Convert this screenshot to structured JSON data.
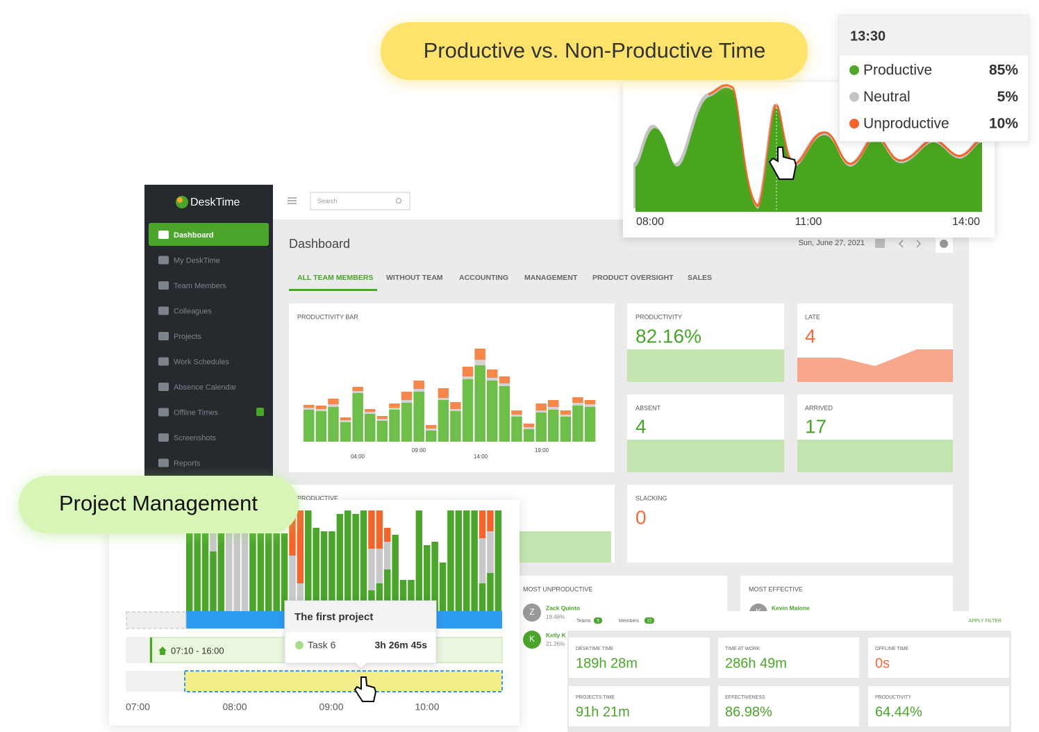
{
  "callouts": {
    "top": "Productive vs. Non-Productive Time",
    "left": "Project Management"
  },
  "tooltip": {
    "time": "13:30",
    "items": [
      {
        "name": "Productive",
        "value": "85%",
        "color": "#4fa82a"
      },
      {
        "name": "Neutral",
        "value": "5%",
        "color": "#c4c4c4"
      },
      {
        "name": "Unproductive",
        "value": "10%",
        "color": "#f5642a"
      }
    ]
  },
  "timeline": {
    "labels": [
      "08:00",
      "11:00",
      "14:00"
    ]
  },
  "sidebar": {
    "brand": "DeskTime",
    "items": [
      "Dashboard",
      "My DeskTime",
      "Team Members",
      "Colleagues",
      "Projects",
      "Work Schedules",
      "Absence Calendar",
      "Offline Times",
      "Screenshots",
      "Reports"
    ]
  },
  "topbar": {
    "search": "Search"
  },
  "dashboard": {
    "title": "Dashboard",
    "date": "Sun, June 27, 2021",
    "tabs": [
      "ALL TEAM MEMBERS",
      "WITHOUT TEAM",
      "ACCOUNTING",
      "MANAGEMENT",
      "PRODUCT OVERSIGHT",
      "SALES"
    ]
  },
  "productivity_bar": {
    "type": "bar",
    "title": "PRODUCTIVITY BAR",
    "x_labels": [
      "04:00",
      "09:00",
      "14:00",
      "19:00"
    ],
    "series": [
      {
        "color": "#6dbf4a",
        "values": [
          46,
          44,
          50,
          28,
          70,
          40,
          30,
          46,
          56,
          72,
          16,
          60,
          44,
          90,
          110,
          88,
          80,
          36,
          18,
          42,
          46,
          36,
          52,
          50
        ]
      },
      {
        "color": "#d2d2d2",
        "values": [
          3,
          3,
          4,
          3,
          3,
          3,
          3,
          3,
          4,
          4,
          3,
          3,
          3,
          4,
          8,
          4,
          4,
          3,
          3,
          3,
          4,
          3,
          4,
          4
        ]
      },
      {
        "color": "#f5874a",
        "values": [
          4,
          5,
          8,
          4,
          6,
          4,
          4,
          6,
          12,
          12,
          5,
          14,
          10,
          14,
          16,
          12,
          10,
          6,
          5,
          10,
          10,
          6,
          8,
          6
        ]
      }
    ]
  },
  "stats": [
    {
      "label": "PRODUCTIVITY",
      "value": "82.16%"
    },
    {
      "label": "LATE",
      "value": "4"
    },
    {
      "label": "ABSENT",
      "value": "4"
    },
    {
      "label": "ARRIVED",
      "value": "17"
    },
    {
      "label": "SLACKING",
      "value": "0"
    }
  ],
  "productive_card": "PRODUCTIVE",
  "most_unproductive": {
    "title": "MOST UNPRODUCTIVE",
    "people": [
      {
        "initial": "Z",
        "name": "Zack Quinto",
        "value": "19.46%"
      },
      {
        "initial": "K",
        "name": "Kelly K",
        "value": "21.26%"
      }
    ]
  },
  "most_effective": {
    "title": "MOST EFFECTIVE",
    "people": [
      {
        "initial": "K",
        "name": "Kevin Malone"
      }
    ]
  },
  "filters": {
    "teams": "Teams",
    "teams_count": "5",
    "members": "Members",
    "members_count": "22",
    "apply": "APPLY FILTER"
  },
  "summary": [
    {
      "label": "DESKTIME TIME",
      "value": "189h 28m"
    },
    {
      "label": "TIME AT WORK",
      "value": "286h 49m"
    },
    {
      "label": "OFFLINE TIME",
      "value": "0s"
    },
    {
      "label": "PROJECTS TIME",
      "value": "91h 21m"
    },
    {
      "label": "EFFECTIVENESS",
      "value": "86.98%"
    },
    {
      "label": "PRODUCTIVITY",
      "value": "64.44%"
    }
  ],
  "project": {
    "type": "bar",
    "x_labels": [
      "07:00",
      "08:00",
      "09:00",
      "10:00"
    ],
    "schedule": "07:10 - 16:00",
    "tooltip": {
      "title": "The first project",
      "task": "Task 6",
      "duration": "3h 26m 45s"
    },
    "series": [
      {
        "color": "#4aa52a",
        "values": [
          112,
          112,
          112,
          86,
          112,
          0,
          0,
          0,
          112,
          112,
          112,
          112,
          112,
          0,
          0,
          145,
          120,
          115,
          115,
          140,
          145,
          140,
          145,
          30,
          40,
          60,
          110,
          45,
          45,
          145,
          95,
          100,
          70,
          145,
          145,
          145,
          145,
          40,
          55,
          145
        ]
      },
      {
        "color": "#c8c8c8",
        "values": [
          0,
          0,
          0,
          26,
          0,
          112,
          112,
          112,
          0,
          0,
          0,
          0,
          0,
          80,
          40,
          0,
          0,
          0,
          0,
          0,
          0,
          0,
          0,
          60,
          50,
          40,
          0,
          0,
          0,
          0,
          0,
          0,
          0,
          0,
          0,
          0,
          0,
          65,
          60,
          0
        ]
      },
      {
        "color": "#f5642a",
        "values": [
          0,
          0,
          0,
          0,
          0,
          0,
          0,
          0,
          0,
          0,
          0,
          0,
          0,
          65,
          105,
          0,
          0,
          0,
          0,
          0,
          0,
          0,
          0,
          55,
          55,
          20,
          0,
          0,
          0,
          0,
          0,
          0,
          0,
          0,
          0,
          0,
          0,
          40,
          30,
          0
        ]
      }
    ]
  }
}
